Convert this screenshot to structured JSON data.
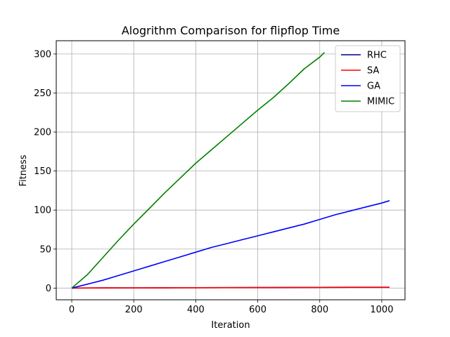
{
  "chart_data": {
    "type": "line",
    "title": "Alogrithm Comparison for flipflop Time",
    "xlabel": "Iteration",
    "ylabel": "Fitness",
    "xlim": [
      -50,
      1075
    ],
    "ylim": [
      -15,
      317
    ],
    "xticks": [
      0,
      200,
      400,
      600,
      800,
      1000
    ],
    "yticks": [
      0,
      50,
      100,
      150,
      200,
      250,
      300
    ],
    "grid": true,
    "legend_position": "top-right",
    "series": [
      {
        "name": "RHC",
        "color": "#00008b",
        "x": [
          0,
          100,
          200,
          300,
          400,
          500,
          600,
          700,
          800,
          900,
          1000,
          1025
        ],
        "y": [
          0,
          0.2,
          0.3,
          0.4,
          0.5,
          0.6,
          0.7,
          0.8,
          0.9,
          1.0,
          1.0,
          1.0
        ]
      },
      {
        "name": "SA",
        "color": "#ff0000",
        "x": [
          0,
          100,
          200,
          300,
          400,
          500,
          600,
          700,
          800,
          900,
          1000,
          1025
        ],
        "y": [
          0,
          0.2,
          0.3,
          0.4,
          0.5,
          0.6,
          0.7,
          0.8,
          0.9,
          1.0,
          1.0,
          1.0
        ]
      },
      {
        "name": "GA",
        "color": "#0000ff",
        "x": [
          0,
          50,
          100,
          150,
          200,
          250,
          300,
          350,
          400,
          450,
          500,
          550,
          600,
          650,
          700,
          750,
          800,
          850,
          900,
          950,
          1000,
          1025
        ],
        "y": [
          0,
          5,
          10,
          16,
          22,
          28,
          34,
          40,
          46,
          52,
          57,
          62,
          67,
          72,
          77,
          82,
          88,
          94,
          99,
          104,
          109,
          112
        ]
      },
      {
        "name": "MIMIC",
        "color": "#008000",
        "x": [
          0,
          50,
          100,
          150,
          200,
          250,
          300,
          350,
          400,
          450,
          500,
          550,
          600,
          650,
          700,
          750,
          800,
          815
        ],
        "y": [
          0,
          17,
          39,
          61,
          82,
          102,
          122,
          141,
          160,
          177,
          194,
          211,
          228,
          244,
          262,
          281,
          296,
          302
        ]
      }
    ]
  }
}
